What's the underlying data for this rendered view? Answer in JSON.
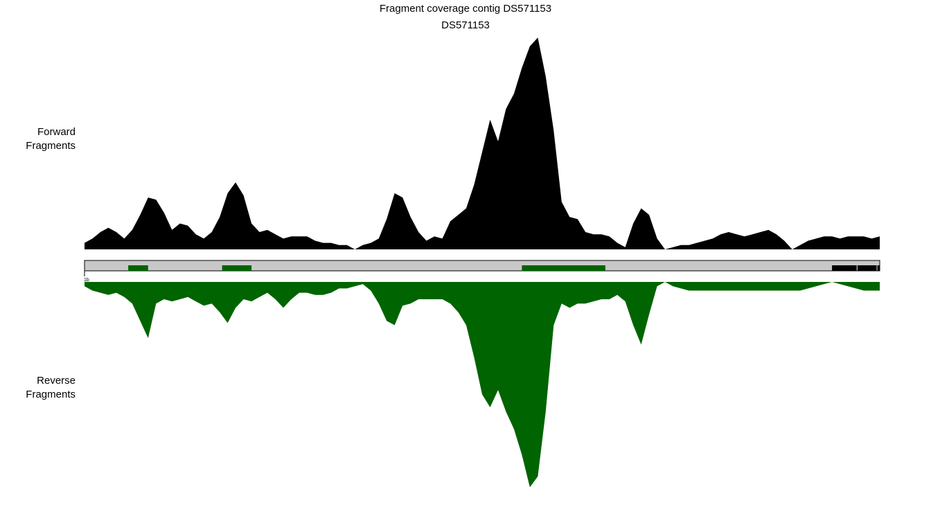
{
  "title": "Fragment coverage contig DS571153",
  "subtitle": "DS571153",
  "tracks": {
    "forward_label_line1": "Forward",
    "forward_label_line2": "Fragments",
    "reverse_label_line1": "Reverse",
    "reverse_label_line2": "Fragments",
    "axis_tick_label": "1b"
  },
  "colors": {
    "forward": "#000000",
    "reverse": "#006400",
    "contig_bar": "#c8c8c8",
    "feature_green": "#006400",
    "feature_black": "#000000"
  },
  "chart_data": {
    "type": "area",
    "x_range": [
      0,
      100
    ],
    "forward_ylim": [
      0,
      100
    ],
    "reverse_ylim": [
      0,
      100
    ],
    "forward_series": {
      "x": [
        0,
        1,
        2,
        3,
        4,
        5,
        6,
        7,
        8,
        9,
        10,
        11,
        12,
        13,
        14,
        15,
        16,
        17,
        18,
        19,
        20,
        21,
        22,
        23,
        24,
        25,
        26,
        27,
        28,
        29,
        30,
        31,
        32,
        33,
        34,
        35,
        36,
        37,
        38,
        39,
        40,
        41,
        42,
        43,
        44,
        45,
        46,
        47,
        48,
        49,
        50,
        51,
        52,
        53,
        54,
        55,
        56,
        57,
        58,
        59,
        60,
        61,
        62,
        63,
        64,
        65,
        66,
        67,
        68,
        69,
        70,
        71,
        72,
        73,
        74,
        75,
        76,
        77,
        78,
        79,
        80,
        81,
        82,
        83,
        84,
        85,
        86,
        87,
        88,
        89,
        90,
        91,
        92,
        93,
        94,
        95,
        96,
        97,
        98,
        99,
        100
      ],
      "values": [
        3,
        5,
        8,
        10,
        8,
        5,
        9,
        16,
        24,
        23,
        17,
        9,
        12,
        11,
        7,
        5,
        8,
        15,
        26,
        31,
        25,
        12,
        8,
        9,
        7,
        5,
        6,
        6,
        6,
        4,
        3,
        3,
        2,
        2,
        0,
        2,
        3,
        5,
        14,
        26,
        24,
        15,
        8,
        4,
        6,
        5,
        13,
        16,
        19,
        30,
        45,
        60,
        50,
        65,
        72,
        84,
        94,
        98,
        80,
        55,
        22,
        15,
        14,
        8,
        7,
        7,
        6,
        3,
        1,
        12,
        19,
        16,
        5,
        0,
        1,
        2,
        2,
        3,
        4,
        5,
        7,
        8,
        7,
        6,
        7,
        8,
        9,
        7,
        4,
        0,
        2,
        4,
        5,
        6,
        6,
        5,
        6,
        6,
        6,
        5,
        6
      ]
    },
    "reverse_series": {
      "x": [
        0,
        1,
        2,
        3,
        4,
        5,
        6,
        7,
        8,
        9,
        10,
        11,
        12,
        13,
        14,
        15,
        16,
        17,
        18,
        19,
        20,
        21,
        22,
        23,
        24,
        25,
        26,
        27,
        28,
        29,
        30,
        31,
        32,
        33,
        34,
        35,
        36,
        37,
        38,
        39,
        40,
        41,
        42,
        43,
        44,
        45,
        46,
        47,
        48,
        49,
        50,
        51,
        52,
        53,
        54,
        55,
        56,
        57,
        58,
        59,
        60,
        61,
        62,
        63,
        64,
        65,
        66,
        67,
        68,
        69,
        70,
        71,
        72,
        73,
        74,
        75,
        76,
        77,
        78,
        79,
        80,
        81,
        82,
        83,
        84,
        85,
        86,
        87,
        88,
        89,
        90,
        91,
        92,
        93,
        94,
        95,
        96,
        97,
        98,
        99,
        100
      ],
      "values": [
        2,
        4,
        5,
        6,
        5,
        7,
        10,
        18,
        26,
        10,
        8,
        9,
        8,
        7,
        9,
        11,
        10,
        14,
        19,
        12,
        8,
        9,
        7,
        5,
        8,
        12,
        8,
        5,
        5,
        6,
        6,
        5,
        3,
        3,
        2,
        1,
        4,
        10,
        18,
        20,
        11,
        10,
        8,
        8,
        8,
        8,
        10,
        14,
        20,
        35,
        52,
        58,
        50,
        60,
        68,
        80,
        95,
        90,
        60,
        20,
        10,
        12,
        10,
        10,
        9,
        8,
        8,
        6,
        9,
        20,
        29,
        15,
        2,
        0,
        2,
        3,
        4,
        4,
        4,
        4,
        4,
        4,
        4,
        4,
        4,
        4,
        4,
        4,
        4,
        4,
        4,
        3,
        2,
        1,
        0,
        1,
        2,
        3,
        4,
        4,
        4
      ]
    },
    "features": [
      {
        "start": 5.5,
        "end": 8.0,
        "color": "green"
      },
      {
        "start": 17.3,
        "end": 21.0,
        "color": "green"
      },
      {
        "start": 55.0,
        "end": 65.5,
        "color": "green"
      },
      {
        "start": 94.0,
        "end": 97.1,
        "color": "black"
      },
      {
        "start": 97.2,
        "end": 99.6,
        "color": "black"
      },
      {
        "start": 99.7,
        "end": 100,
        "color": "black"
      }
    ]
  }
}
